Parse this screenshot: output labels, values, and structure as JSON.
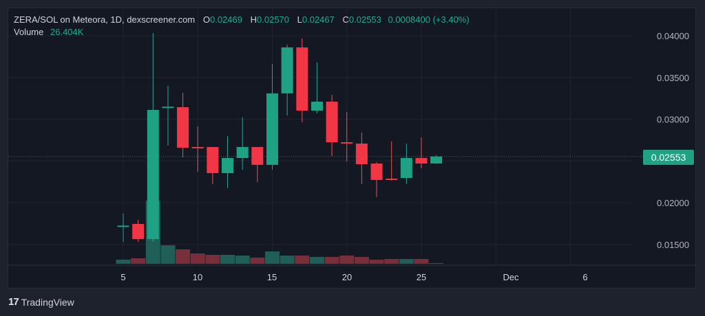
{
  "header": {
    "symbol_line": "ZERA/SOL on Meteora, 1D, dexscreener.com",
    "ohlc": {
      "o_label": "O",
      "o_value": "0.02469",
      "h_label": "H",
      "h_value": "0.02570",
      "l_label": "L",
      "l_value": "0.02467",
      "c_label": "C",
      "c_value": "0.02553",
      "change": "0.0008400 (+3.40%)"
    },
    "volume_label": "Volume",
    "volume_value": "26.404K"
  },
  "price_scale": {
    "ticks": [
      "0.04000",
      "0.03500",
      "0.03000",
      "0.02000",
      "0.01500"
    ],
    "last_price": "0.02553"
  },
  "time_scale": {
    "ticks": [
      "5",
      "10",
      "15",
      "20",
      "25",
      "Dec",
      "6"
    ]
  },
  "branding": {
    "logo": "17",
    "name": "TradingView"
  },
  "colors": {
    "up": "#26a69a",
    "down": "#ef5350",
    "up_body": "#1fa284",
    "down_body": "#f23645",
    "vol_up": "#1f5f58",
    "vol_down": "#7a2e3a",
    "background": "#141822"
  },
  "chart_data": {
    "type": "candlestick",
    "title": "ZERA/SOL on Meteora, 1D, dexscreener.com",
    "xlabel": "",
    "ylabel": "",
    "ylim": [
      0.0125,
      0.041
    ],
    "x": [
      5,
      6,
      7,
      8,
      9,
      10,
      11,
      12,
      13,
      14,
      15,
      16,
      17,
      18,
      19,
      20,
      21,
      22,
      23,
      24,
      25,
      26
    ],
    "series": [
      {
        "name": "open",
        "values": [
          0.0172,
          0.01745,
          0.01563,
          0.0314,
          0.03144,
          0.02667,
          0.02667,
          0.02354,
          0.02535,
          0.02667,
          0.02453,
          0.03309,
          0.0386,
          0.03103,
          0.0321,
          0.02724,
          0.02708,
          0.02469,
          0.02288,
          0.02296,
          0.02535,
          0.02469
        ]
      },
      {
        "name": "high",
        "values": [
          0.01868,
          0.01794,
          0.04033,
          0.03399,
          0.03317,
          0.02913,
          0.02667,
          0.02798,
          0.03021,
          0.02667,
          0.03663,
          0.03893,
          0.03967,
          0.03679,
          0.03292,
          0.03086,
          0.0284,
          0.02486,
          0.02733,
          0.02708,
          0.02782,
          0.0257
        ]
      },
      {
        "name": "low",
        "values": [
          0.0153,
          0.0153,
          0.0153,
          0.02683,
          0.02543,
          0.0237,
          0.02222,
          0.02173,
          0.02395,
          0.02247,
          0.02395,
          0.03045,
          0.02963,
          0.0307,
          0.0256,
          0.02494,
          0.02222,
          0.02066,
          0.02264,
          0.02222,
          0.02412,
          0.02467
        ]
      },
      {
        "name": "close",
        "values": [
          0.01725,
          0.01563,
          0.03111,
          0.0315,
          0.02658,
          0.02662,
          0.02354,
          0.02535,
          0.02667,
          0.02453,
          0.03309,
          0.0386,
          0.03103,
          0.0321,
          0.02724,
          0.02708,
          0.02461,
          0.02272,
          0.02272,
          0.02535,
          0.02469,
          0.02553
        ]
      },
      {
        "name": "volume_px",
        "values": [
          6,
          8,
          92,
          27,
          21,
          15,
          13,
          13,
          12,
          9,
          18,
          12,
          12,
          10,
          10,
          12,
          10,
          6,
          7,
          7,
          7,
          1
        ]
      }
    ],
    "last_price": 0.02553,
    "x_tick_labels": [
      "5",
      "10",
      "15",
      "20",
      "25",
      "Dec",
      "6"
    ],
    "y_tick_labels": [
      "0.04000",
      "0.03500",
      "0.03000",
      "0.02000",
      "0.01500"
    ],
    "grid": true
  }
}
